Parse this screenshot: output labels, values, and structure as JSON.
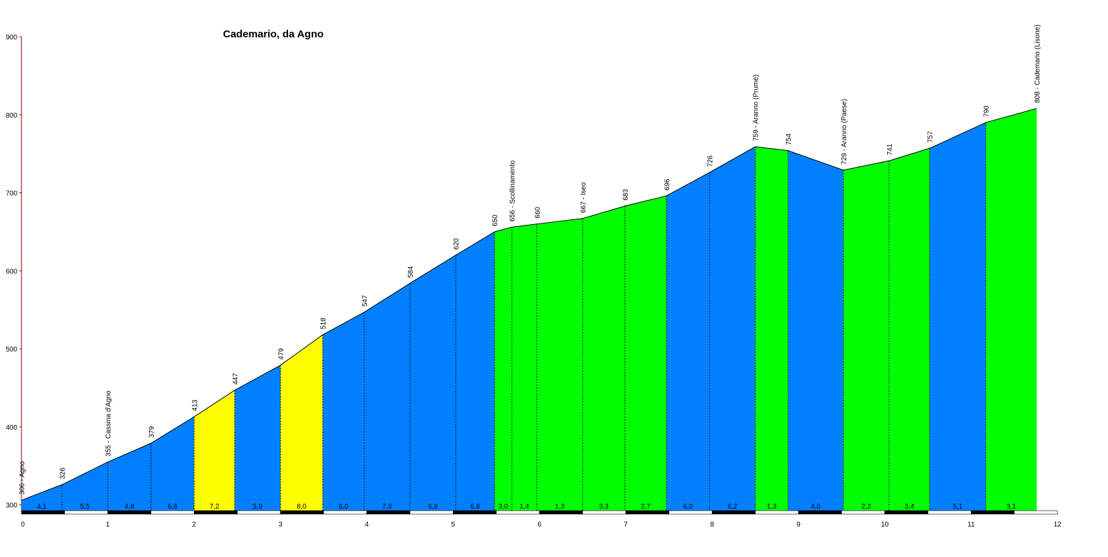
{
  "chart_data": {
    "type": "area",
    "title": "Cademario, da Agno",
    "xlim": [
      0,
      12
    ],
    "ylim": [
      290,
      900
    ],
    "x_ticks": [
      "0",
      "1",
      "2",
      "3",
      "4",
      "5",
      "6",
      "7",
      "8",
      "9",
      "10",
      "11",
      "12"
    ],
    "y_ticks": [
      "300",
      "400",
      "500",
      "600",
      "700",
      "800",
      "900"
    ],
    "y_tick_values": [
      300,
      400,
      500,
      600,
      700,
      800,
      900
    ],
    "colors": {
      "blue": "#0080ff",
      "yellow": "#ffff00",
      "green": "#00ff00"
    },
    "points": [
      {
        "x": 0,
        "y": 306,
        "label": "306 - Agno"
      },
      {
        "x": 0.47,
        "y": 326,
        "label": "326"
      },
      {
        "x": 1,
        "y": 355,
        "label": "355 - Cassina d'Agno"
      },
      {
        "x": 1.5,
        "y": 379,
        "label": "379"
      },
      {
        "x": 2,
        "y": 413,
        "label": "413"
      },
      {
        "x": 2.47,
        "y": 447,
        "label": "447"
      },
      {
        "x": 3,
        "y": 479,
        "label": "479"
      },
      {
        "x": 3.49,
        "y": 518,
        "label": "518"
      },
      {
        "x": 3.97,
        "y": 547,
        "label": "547"
      },
      {
        "x": 4.5,
        "y": 584,
        "label": "584"
      },
      {
        "x": 5.03,
        "y": 620,
        "label": "620"
      },
      {
        "x": 5.48,
        "y": 650,
        "label": "650"
      },
      {
        "x": 5.68,
        "y": 656,
        "label": "656 - Scollinamento"
      },
      {
        "x": 5.97,
        "y": 660,
        "label": "660"
      },
      {
        "x": 6.5,
        "y": 667,
        "label": "667 - Iseo"
      },
      {
        "x": 6.99,
        "y": 683,
        "label": "683"
      },
      {
        "x": 7.47,
        "y": 696,
        "label": "696"
      },
      {
        "x": 7.97,
        "y": 726,
        "label": "726"
      },
      {
        "x": 8.5,
        "y": 759,
        "label": "759 - Aranno (Prumè)"
      },
      {
        "x": 8.88,
        "y": 754,
        "label": "754"
      },
      {
        "x": 9.52,
        "y": 729,
        "label": "729 - Aranno (Paese)"
      },
      {
        "x": 10.05,
        "y": 741,
        "label": "741"
      },
      {
        "x": 10.52,
        "y": 757,
        "label": "757"
      },
      {
        "x": 11.17,
        "y": 790,
        "label": "790"
      },
      {
        "x": 11.76,
        "y": 808,
        "label": "808 - Cademario (Lisone)"
      }
    ],
    "segments": [
      {
        "grade": "4,1",
        "color": "blue"
      },
      {
        "grade": "5,5",
        "color": "blue"
      },
      {
        "grade": "4,8",
        "color": "blue"
      },
      {
        "grade": "6,8",
        "color": "blue"
      },
      {
        "grade": "7,2",
        "color": "yellow"
      },
      {
        "grade": "5,9",
        "color": "blue"
      },
      {
        "grade": "8,0",
        "color": "yellow"
      },
      {
        "grade": "6,0",
        "color": "blue"
      },
      {
        "grade": "7,0",
        "color": "blue"
      },
      {
        "grade": "6,8",
        "color": "blue"
      },
      {
        "grade": "6,8",
        "color": "blue"
      },
      {
        "grade": "3,0",
        "color": "green"
      },
      {
        "grade": "1,4",
        "color": "green"
      },
      {
        "grade": "1,3",
        "color": "green"
      },
      {
        "grade": "3,3",
        "color": "green"
      },
      {
        "grade": "2,7",
        "color": "green"
      },
      {
        "grade": "6,0",
        "color": "blue"
      },
      {
        "grade": "6,2",
        "color": "blue"
      },
      {
        "grade": "1,3",
        "color": "green"
      },
      {
        "grade": "4,0",
        "color": "blue"
      },
      {
        "grade": "2,2",
        "color": "green"
      },
      {
        "grade": "3,4",
        "color": "green"
      },
      {
        "grade": "5,1",
        "color": "blue"
      },
      {
        "grade": "3,1",
        "color": "green"
      }
    ]
  }
}
